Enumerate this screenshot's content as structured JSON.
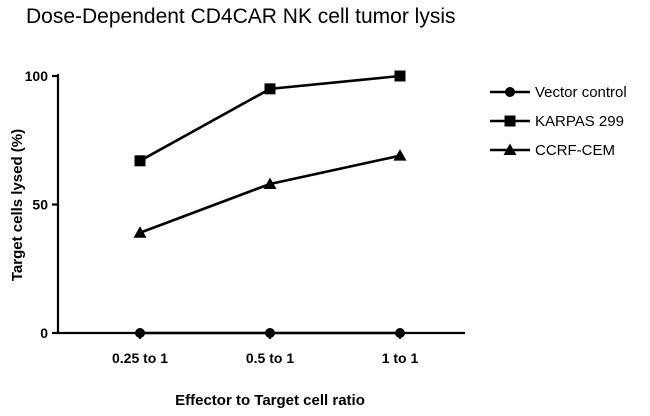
{
  "chart_data": {
    "type": "line",
    "title": "Dose-Dependent CD4CAR NK cell tumor lysis",
    "xlabel": "Effector to Target cell ratio",
    "ylabel": "Target cells lysed (%)",
    "categories": [
      "0.25 to 1",
      "0.5 to 1",
      "1 to 1"
    ],
    "ylim": [
      0,
      100
    ],
    "yticks": [
      0,
      50,
      100
    ],
    "grid": false,
    "legend_position": "right",
    "series": [
      {
        "name": "Vector control",
        "marker": "circle",
        "values": [
          0,
          0,
          0
        ]
      },
      {
        "name": "KARPAS 299",
        "marker": "square",
        "values": [
          67,
          95,
          100
        ]
      },
      {
        "name": "CCRF-CEM",
        "marker": "triangle",
        "values": [
          39,
          58,
          69
        ]
      }
    ],
    "colors": {
      "line": "#000000",
      "background": "#ffffff"
    }
  }
}
